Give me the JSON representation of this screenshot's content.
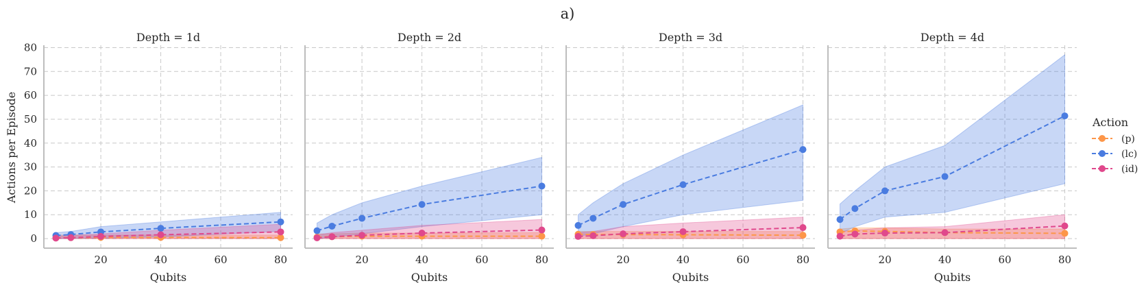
{
  "figure": {
    "title": "a)",
    "ylabel": "Actions per Episode",
    "legend": {
      "title": "Action",
      "position": "right"
    }
  },
  "colors": {
    "p": "#fd9649",
    "lc": "#4a7ce0",
    "id": "#e0488c",
    "grid": "#c8c8c8",
    "axis": "#bdbdbd"
  },
  "chart_data": [
    {
      "type": "line",
      "title": "Depth = 1d",
      "xlabel": "Qubits",
      "ylabel": "Actions per Episode",
      "x": [
        5,
        10,
        20,
        40,
        80
      ],
      "xlim": [
        1,
        84
      ],
      "ylim": [
        -4,
        81
      ],
      "xticks": [
        20,
        40,
        60,
        80
      ],
      "yticks": [
        0,
        10,
        20,
        30,
        40,
        50,
        60,
        70,
        80
      ],
      "grid": true,
      "series": [
        {
          "key": "p",
          "name": "(p)",
          "values": [
            0.3,
            0.4,
            0.5,
            0.5,
            0.4
          ],
          "lower": [
            0,
            0,
            0,
            0,
            0
          ],
          "upper": [
            1.5,
            1.5,
            1.5,
            1.5,
            1.5
          ]
        },
        {
          "key": "lc",
          "name": "(lc)",
          "values": [
            1.3,
            1.7,
            2.8,
            4.3,
            7.0
          ],
          "lower": [
            0,
            0,
            0.2,
            0.7,
            3
          ],
          "upper": [
            2.5,
            3,
            5,
            7,
            11
          ]
        },
        {
          "key": "id",
          "name": "(id)",
          "values": [
            0.2,
            0.4,
            0.9,
            1.6,
            2.8
          ],
          "lower": [
            0,
            0,
            0,
            0,
            0
          ],
          "upper": [
            1,
            1.3,
            2,
            3.5,
            6
          ]
        }
      ]
    },
    {
      "type": "line",
      "title": "Depth = 2d",
      "xlabel": "Qubits",
      "ylabel": "",
      "x": [
        5,
        10,
        20,
        40,
        80
      ],
      "xlim": [
        1,
        84
      ],
      "ylim": [
        -4,
        81
      ],
      "xticks": [
        20,
        40,
        60,
        80
      ],
      "yticks": [
        0,
        10,
        20,
        30,
        40,
        50,
        60,
        70,
        80
      ],
      "grid": true,
      "series": [
        {
          "key": "p",
          "name": "(p)",
          "values": [
            0.6,
            0.8,
            1.0,
            1.0,
            1.0
          ],
          "lower": [
            0,
            0,
            0,
            0,
            0
          ],
          "upper": [
            2,
            2,
            2.3,
            2.3,
            2.5
          ]
        },
        {
          "key": "lc",
          "name": "(lc)",
          "values": [
            3.3,
            5.2,
            8.5,
            14.3,
            22.0
          ],
          "lower": [
            0,
            0.5,
            2,
            5,
            10
          ],
          "upper": [
            6.5,
            10,
            15,
            22,
            34
          ]
        },
        {
          "key": "id",
          "name": "(id)",
          "values": [
            0.3,
            0.8,
            1.4,
            2.3,
            3.6
          ],
          "lower": [
            0,
            0,
            0,
            0,
            0
          ],
          "upper": [
            1.5,
            2.5,
            3.5,
            5.5,
            8
          ]
        }
      ]
    },
    {
      "type": "line",
      "title": "Depth = 3d",
      "xlabel": "Qubits",
      "ylabel": "",
      "x": [
        5,
        10,
        20,
        40,
        80
      ],
      "xlim": [
        1,
        84
      ],
      "ylim": [
        -4,
        81
      ],
      "xticks": [
        20,
        40,
        60,
        80
      ],
      "yticks": [
        0,
        10,
        20,
        30,
        40,
        50,
        60,
        70,
        80
      ],
      "grid": true,
      "series": [
        {
          "key": "p",
          "name": "(p)",
          "values": [
            1.8,
            1.7,
            1.7,
            1.6,
            1.4
          ],
          "lower": [
            0,
            0,
            0,
            0,
            0
          ],
          "upper": [
            3,
            3,
            3,
            3,
            3
          ]
        },
        {
          "key": "lc",
          "name": "(lc)",
          "values": [
            5.5,
            8.5,
            14.3,
            22.6,
            37.3
          ],
          "lower": [
            1,
            2,
            5,
            10,
            16
          ],
          "upper": [
            10,
            15,
            23,
            35,
            56
          ]
        },
        {
          "key": "id",
          "name": "(id)",
          "values": [
            0.9,
            1.2,
            2.0,
            2.9,
            4.6
          ],
          "lower": [
            0,
            0,
            0,
            0,
            0
          ],
          "upper": [
            2.5,
            3,
            5,
            6.5,
            9
          ]
        }
      ]
    },
    {
      "type": "line",
      "title": "Depth = 4d",
      "xlabel": "Qubits",
      "ylabel": "",
      "x": [
        5,
        10,
        20,
        40,
        80
      ],
      "xlim": [
        1,
        84
      ],
      "ylim": [
        -4,
        81
      ],
      "xticks": [
        20,
        40,
        60,
        80
      ],
      "yticks": [
        0,
        10,
        20,
        30,
        40,
        50,
        60,
        70,
        80
      ],
      "grid": true,
      "series": [
        {
          "key": "p",
          "name": "(p)",
          "values": [
            2.8,
            3.2,
            3.0,
            2.5,
            2.2
          ],
          "lower": [
            0,
            0,
            0,
            0,
            0
          ],
          "upper": [
            4,
            4.5,
            4.5,
            4,
            4
          ]
        },
        {
          "key": "lc",
          "name": "(lc)",
          "values": [
            8.0,
            12.6,
            20.0,
            26.0,
            51.4
          ],
          "lower": [
            2,
            5,
            9,
            11,
            23
          ],
          "upper": [
            14.5,
            20,
            30,
            39,
            77
          ]
        },
        {
          "key": "id",
          "name": "(id)",
          "values": [
            1.0,
            1.9,
            2.3,
            2.5,
            5.3
          ],
          "lower": [
            0,
            0,
            0,
            0,
            0
          ],
          "upper": [
            3,
            3.5,
            4.5,
            5,
            10
          ]
        }
      ]
    }
  ]
}
